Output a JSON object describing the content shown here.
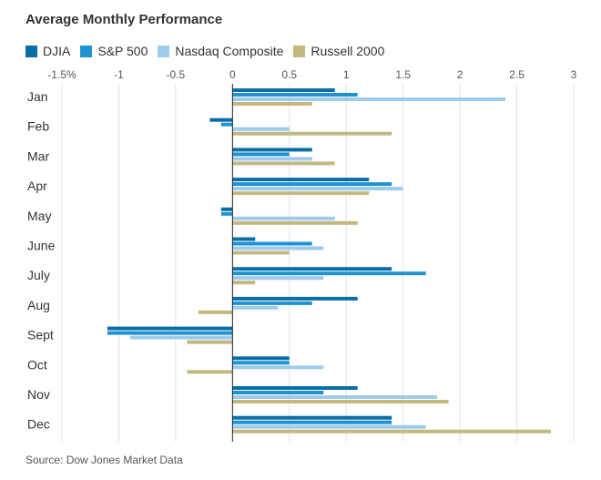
{
  "title": "Average Monthly Performance",
  "source": "Source: Dow Jones Market Data",
  "colors": {
    "DJIA": "#0a6ea6",
    "S&P 500": "#1f93d1",
    "Nasdaq Composite": "#9ecbec",
    "Russell 2000": "#c2b880"
  },
  "chart_data": {
    "type": "bar",
    "orientation": "horizontal",
    "title": "Average Monthly Performance",
    "xlim": [
      -1.5,
      3
    ],
    "x_ticks": [
      -1.5,
      -1,
      -0.5,
      0,
      0.5,
      1,
      1.5,
      2,
      2.5,
      3
    ],
    "x_tick_labels": [
      "-1.5%",
      "-1",
      "-0.5",
      "0",
      "0.5",
      "1",
      "1.5",
      "2",
      "2.5",
      "3"
    ],
    "grid": true,
    "legend_position": "top-left",
    "categories": [
      "Jan",
      "Feb",
      "Mar",
      "Apr",
      "May",
      "June",
      "July",
      "Aug",
      "Sept",
      "Oct",
      "Nov",
      "Dec"
    ],
    "series": [
      {
        "name": "DJIA",
        "values": [
          0.9,
          -0.2,
          0.7,
          1.2,
          -0.1,
          0.2,
          1.4,
          1.1,
          -1.1,
          0.5,
          1.1,
          1.4
        ]
      },
      {
        "name": "S&P 500",
        "values": [
          1.1,
          -0.1,
          0.5,
          1.4,
          -0.1,
          0.7,
          1.7,
          0.7,
          -1.1,
          0.5,
          0.8,
          1.4
        ]
      },
      {
        "name": "Nasdaq Composite",
        "values": [
          2.4,
          0.5,
          0.7,
          1.5,
          0.9,
          0.8,
          0.8,
          0.4,
          -0.9,
          0.8,
          1.8,
          1.7
        ]
      },
      {
        "name": "Russell 2000",
        "values": [
          0.7,
          1.4,
          0.9,
          1.2,
          1.1,
          0.5,
          0.2,
          -0.3,
          -0.4,
          -0.4,
          1.9,
          2.8
        ]
      }
    ]
  }
}
